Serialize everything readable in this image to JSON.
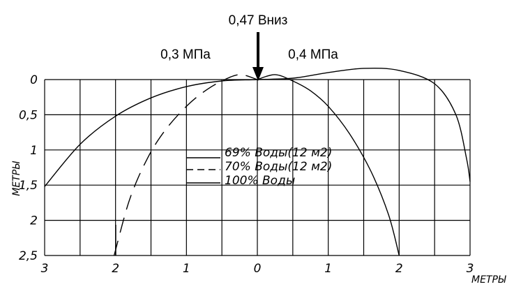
{
  "chart_data": {
    "type": "line",
    "annotations": {
      "load": "0,47 Вниз",
      "left_pressure": "0,3 МПа",
      "right_pressure": "0,4 МПа"
    },
    "xlabel": "МЕТРЫ",
    "ylabel": "МЕТРЫ",
    "x_ticks": [
      "3",
      "2",
      "1",
      "0",
      "1",
      "2",
      "3"
    ],
    "x_tick_values": [
      -3,
      -2,
      -1,
      0,
      1,
      2,
      3
    ],
    "y_ticks": [
      "0",
      "0,5",
      "1",
      "1,5",
      "2",
      "2,5"
    ],
    "y_tick_values": [
      0,
      0.5,
      1,
      1.5,
      2,
      2.5
    ],
    "xlim": [
      -3,
      3
    ],
    "ylim": [
      0,
      2.5
    ],
    "y_inverted": true,
    "grid": true,
    "legend_position": "center",
    "series": [
      {
        "name": "69% Воды(12 м2)",
        "dash": "solid",
        "points": [
          [
            -3.0,
            1.52
          ],
          [
            -2.5,
            0.92
          ],
          [
            -2.0,
            0.52
          ],
          [
            -1.5,
            0.26
          ],
          [
            -1.0,
            0.1
          ],
          [
            -0.5,
            0.02
          ],
          [
            0.0,
            0.0
          ],
          [
            0.5,
            -0.02
          ],
          [
            1.0,
            -0.1
          ],
          [
            1.5,
            -0.16
          ],
          [
            2.0,
            -0.13
          ],
          [
            2.5,
            0.06
          ],
          [
            2.8,
            0.5
          ],
          [
            2.95,
            1.12
          ],
          [
            3.0,
            1.45
          ]
        ]
      },
      {
        "name": "70% Воды(12 м2)",
        "dash": "dashed",
        "points": [
          [
            -2.02,
            2.5
          ],
          [
            -1.8,
            1.7
          ],
          [
            -1.55,
            1.12
          ],
          [
            -1.3,
            0.72
          ],
          [
            -1.0,
            0.38
          ],
          [
            -0.75,
            0.17
          ],
          [
            -0.5,
            0.02
          ],
          [
            -0.25,
            -0.07
          ],
          [
            0.0,
            0.0
          ]
        ]
      },
      {
        "name": "100% Воды",
        "dash": "solid",
        "points": [
          [
            0.0,
            0.0
          ],
          [
            0.25,
            -0.07
          ],
          [
            0.5,
            0.02
          ],
          [
            0.75,
            0.16
          ],
          [
            1.0,
            0.38
          ],
          [
            1.3,
            0.77
          ],
          [
            1.6,
            1.3
          ],
          [
            1.85,
            1.92
          ],
          [
            2.0,
            2.5
          ]
        ]
      }
    ]
  }
}
